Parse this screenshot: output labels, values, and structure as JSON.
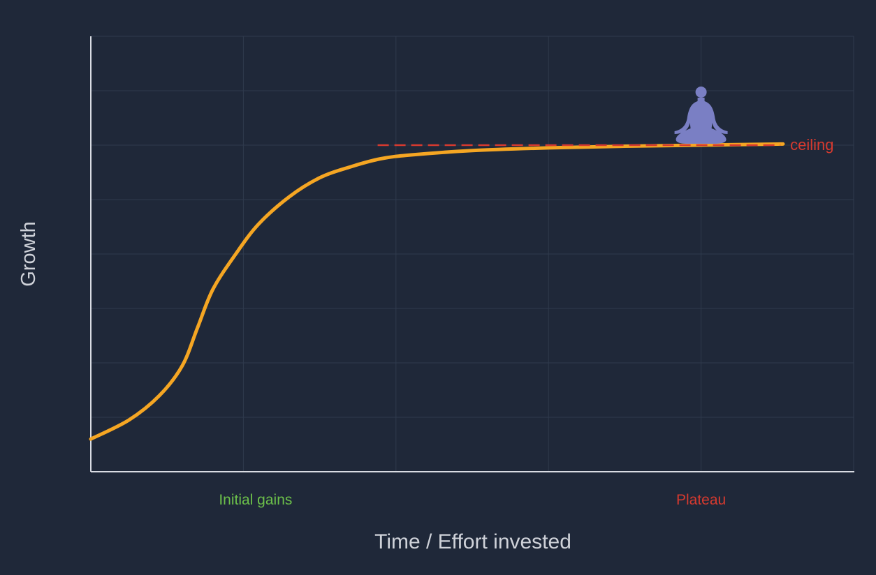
{
  "chart_data": {
    "type": "line",
    "title": "",
    "xlabel": "Time / Effort invested",
    "ylabel": "Growth",
    "xlim": [
      0,
      5
    ],
    "ylim": [
      0,
      8
    ],
    "grid": true,
    "series": [
      {
        "values_x": [
          0,
          0.25,
          0.45,
          0.6,
          0.7,
          0.8,
          0.95,
          1.1,
          1.3,
          1.5,
          1.7,
          1.9,
          2.1,
          2.5,
          3.0,
          3.5,
          4.0,
          4.5,
          4.5
        ],
        "values_y": [
          0.6,
          0.95,
          1.4,
          1.95,
          2.65,
          3.35,
          4.0,
          4.55,
          5.05,
          5.4,
          5.6,
          5.75,
          5.82,
          5.9,
          5.95,
          5.98,
          6.0,
          6.02,
          6.02
        ]
      }
    ],
    "annotations": {
      "ceiling": {
        "label": "ceiling",
        "y": 6.0,
        "x_start": 1.88,
        "x_end": 4.52
      },
      "phases": [
        {
          "label": "Initial gains",
          "x": 1.08
        },
        {
          "label": "Plateau",
          "x": 4.0
        }
      ],
      "figure": {
        "icon": "meditating-person-icon",
        "x": 4.0
      }
    }
  },
  "colors": {
    "background": "#1f2839",
    "curve": "#f5a623",
    "ceiling": "#d63a2f",
    "initial_gains": "#6cc04a",
    "plateau": "#d63a2f",
    "axis_text": "#cfd2d9",
    "figure": "#7a7fc4"
  }
}
